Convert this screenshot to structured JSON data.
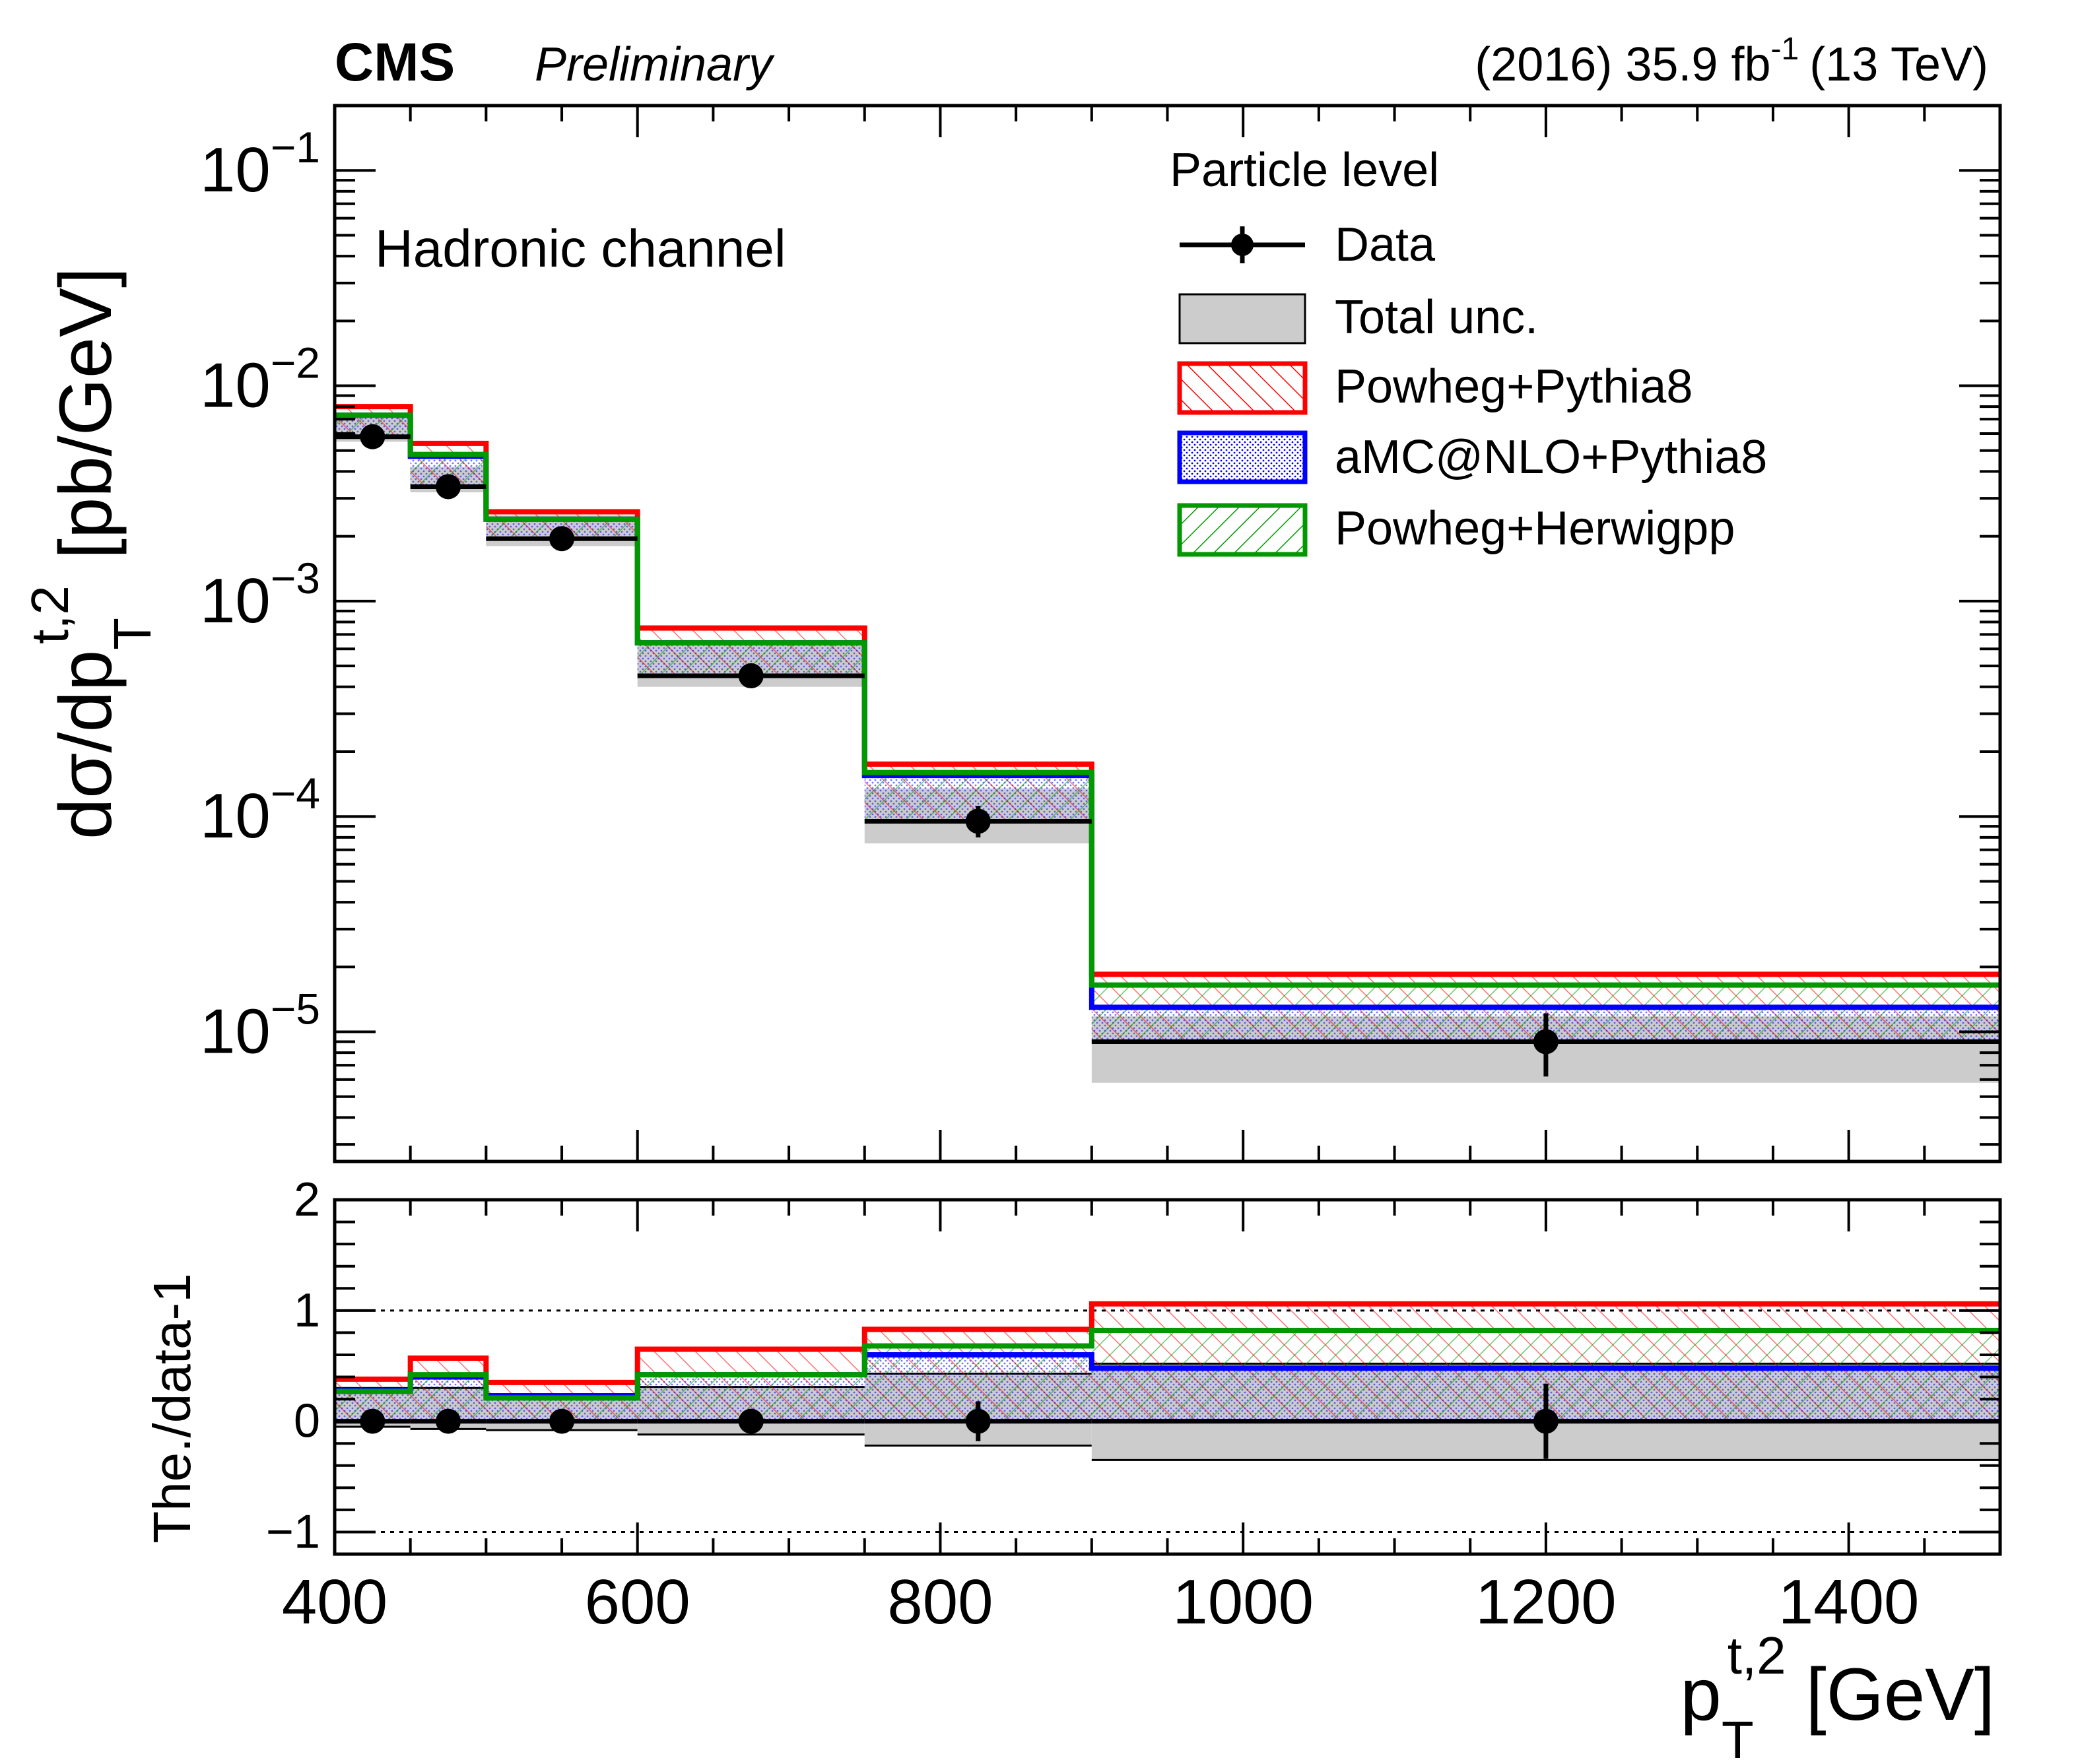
{
  "header": {
    "experiment": "CMS",
    "status": "Preliminary",
    "lumi_prefix": "(2016) 35.9 fb",
    "lumi_exp": "-1",
    "energy": "(13 TeV)"
  },
  "colors": {
    "powheg_pythia8": "#ff0000",
    "amcatnlo_pythia8": "#0000ff",
    "powheg_herwigpp": "#009900",
    "data": "#000000",
    "total_unc_fill": "#cccccc"
  },
  "chart_data": [
    {
      "type": "line",
      "title": "",
      "annotation": "Hadronic channel",
      "xlabel": "",
      "ylabel": {
        "main": "dσ/dp",
        "sub": "T",
        "sup": "t,2",
        "unit": "[pb/GeV]"
      },
      "yscale": "log",
      "xlim": [
        400,
        1500
      ],
      "ylim": [
        2.5e-06,
        0.2
      ],
      "y_ticks": [
        {
          "value": 0.1,
          "base": "10",
          "exp": "−1"
        },
        {
          "value": 0.01,
          "base": "10",
          "exp": "−2"
        },
        {
          "value": 0.001,
          "base": "10",
          "exp": "−3"
        },
        {
          "value": 0.0001,
          "base": "10",
          "exp": "−4"
        },
        {
          "value": 1e-05,
          "base": "10",
          "exp": "−5"
        }
      ],
      "legend": {
        "header": "Particle level",
        "placement": "top-right",
        "entries": [
          "Data",
          "Total unc.",
          "Powheg+Pythia8",
          "aMC@NLO+Pythia8",
          "Powheg+Herwigpp"
        ]
      },
      "bin_edges": [
        400,
        450,
        500,
        600,
        750,
        900,
        1500
      ],
      "data": {
        "name": "Data",
        "x": [
          425,
          475,
          550,
          675,
          825,
          1200
        ],
        "y": [
          0.0058,
          0.0034,
          0.00195,
          0.00045,
          9.5e-05,
          9e-06
        ],
        "yerr_low": [
          0.0,
          0.0,
          0.0,
          0.0,
          1.5e-05,
          2.8e-06
        ],
        "yerr_high": [
          0.0,
          0.0,
          0.0,
          0.0,
          1.7e-05,
          3.2e-06
        ]
      },
      "total_unc": {
        "name": "Total unc.",
        "low": [
          0.0055,
          0.0032,
          0.0018,
          0.0004,
          7.5e-05,
          5.8e-06
        ],
        "high": [
          0.0073,
          0.0042,
          0.0025,
          0.00062,
          0.000135,
          1.18e-05
        ]
      },
      "series": [
        {
          "name": "Powheg+Pythia8",
          "values": [
            0.008,
            0.0054,
            0.0026,
            0.00075,
            0.000175,
            1.85e-05
          ]
        },
        {
          "name": "aMC@NLO+Pythia8",
          "values": [
            0.0073,
            0.0047,
            0.0024,
            0.00064,
            0.000155,
            1.3e-05
          ]
        },
        {
          "name": "Powheg+Herwigpp",
          "values": [
            0.0073,
            0.0048,
            0.0024,
            0.00064,
            0.00016,
            1.65e-05
          ]
        }
      ]
    },
    {
      "type": "line",
      "title": "",
      "xlabel": {
        "main": "p",
        "sub": "T",
        "sup": "t,2",
        "unit": "[GeV]"
      },
      "ylabel": "The./data-1",
      "xlim": [
        400,
        1500
      ],
      "ylim": [
        -1.2,
        2.0
      ],
      "x_ticks": [
        400,
        600,
        800,
        1000,
        1200,
        1400
      ],
      "y_ticks": [
        {
          "value": 2,
          "label": "2"
        },
        {
          "value": 1,
          "label": "1"
        },
        {
          "value": 0,
          "label": "0"
        },
        {
          "value": -1,
          "label": "−1"
        }
      ],
      "reference_lines": [
        1,
        -1
      ],
      "bin_edges": [
        400,
        450,
        500,
        600,
        750,
        900,
        1500
      ],
      "data": {
        "name": "Data",
        "x": [
          425,
          475,
          550,
          675,
          825,
          1200
        ],
        "y": [
          0,
          0,
          0,
          0,
          0,
          0
        ],
        "yerr": [
          0.02,
          0.03,
          0.03,
          0.04,
          0.18,
          0.34
        ]
      },
      "total_unc": {
        "name": "Total unc.",
        "low": [
          -0.05,
          -0.07,
          -0.08,
          -0.12,
          -0.22,
          -0.35
        ],
        "high": [
          0.3,
          0.3,
          0.24,
          0.31,
          0.43,
          0.52
        ]
      },
      "series": [
        {
          "name": "Powheg+Pythia8",
          "values": [
            0.38,
            0.57,
            0.35,
            0.65,
            0.83,
            1.06
          ]
        },
        {
          "name": "aMC@NLO+Pythia8",
          "values": [
            0.28,
            0.4,
            0.23,
            0.42,
            0.6,
            0.48
          ]
        },
        {
          "name": "Powheg+Herwigpp",
          "values": [
            0.27,
            0.42,
            0.21,
            0.42,
            0.68,
            0.82
          ]
        }
      ]
    }
  ]
}
